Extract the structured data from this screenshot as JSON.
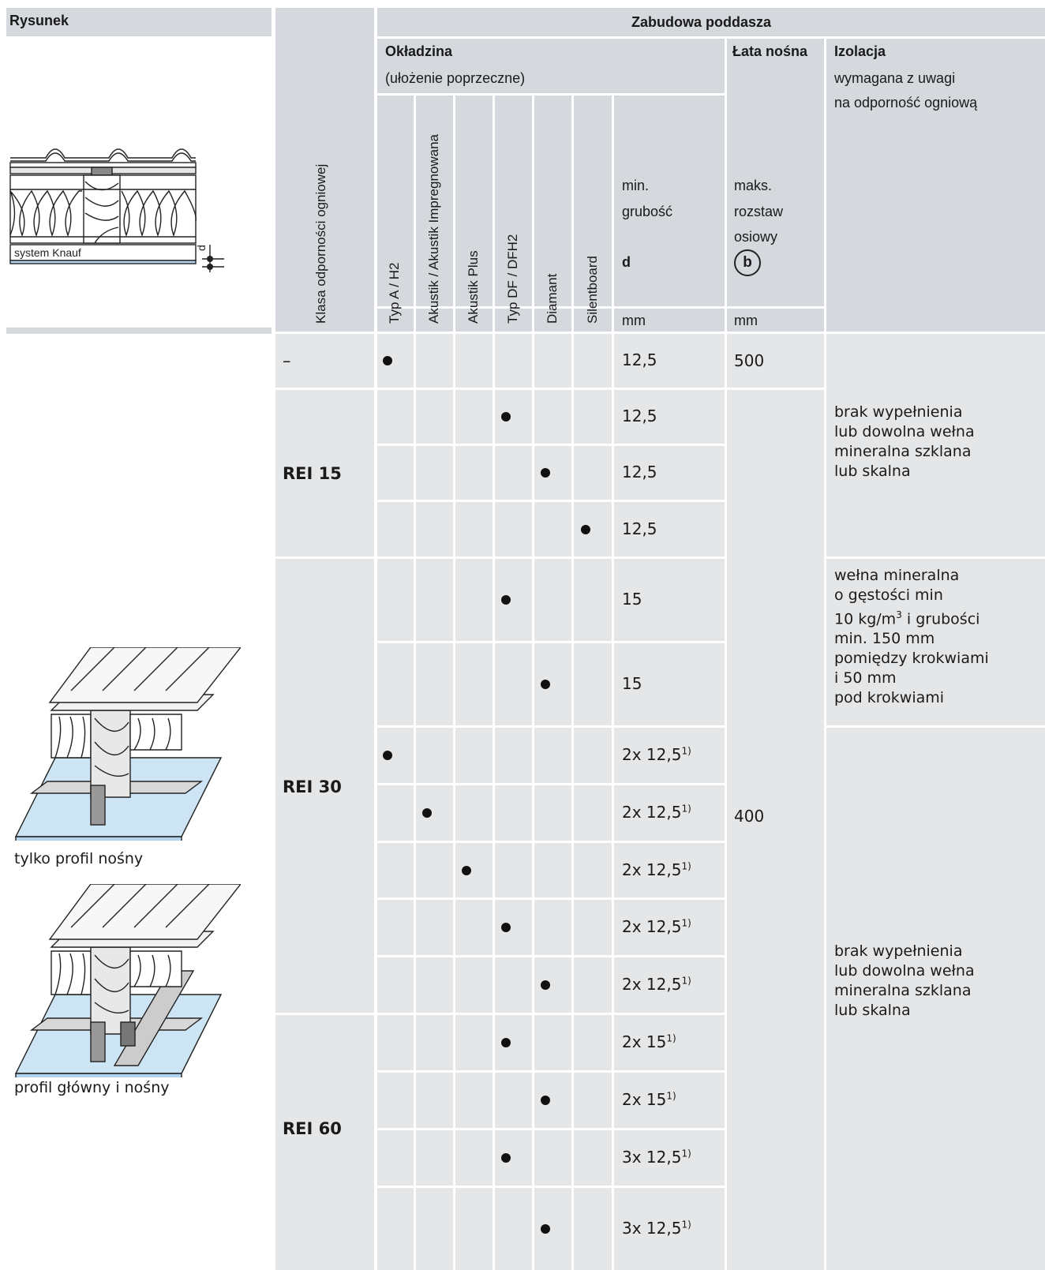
{
  "header": {
    "rysunek": "Rysunek",
    "zabudowa": "Zabudowa poddasza",
    "okladzina": "Okładzina",
    "okladzina_sub": "(ułożenie poprzeczne)",
    "lata": "Łata nośna",
    "izolacja": "Izolacja",
    "izolacja_sub1": "wymagana z uwagi",
    "izolacja_sub2": "na odporność ogniową",
    "klasa": "Klasa odporności ogniowej",
    "columns": [
      "Typ A / H2",
      "Akustik / Akustik Impregnowana",
      "Akustik Plus",
      "Typ DF / DFH2",
      "Diamant",
      "Silentboard"
    ],
    "min": "min.",
    "grubosc": "grubość",
    "d": "d",
    "maks": "maks.",
    "rozstaw": "rozstaw",
    "osiowy": "osiowy",
    "b": "b",
    "mm1": "mm",
    "mm2": "mm",
    "system_knauf": "system Knauf",
    "d_label": "d"
  },
  "rows": [
    {
      "col": 0,
      "thickness": "12,5",
      "sup": ""
    },
    {
      "col": 3,
      "thickness": "12,5",
      "sup": ""
    },
    {
      "col": 4,
      "thickness": "12,5",
      "sup": ""
    },
    {
      "col": 5,
      "thickness": "12,5",
      "sup": ""
    },
    {
      "col": 3,
      "thickness": "15",
      "sup": ""
    },
    {
      "col": 4,
      "thickness": "15",
      "sup": ""
    },
    {
      "col": 0,
      "thickness": "2x 12,5",
      "sup": "1)"
    },
    {
      "col": 1,
      "thickness": "2x 12,5",
      "sup": "1)"
    },
    {
      "col": 2,
      "thickness": "2x 12,5",
      "sup": "1)"
    },
    {
      "col": 3,
      "thickness": "2x 12,5",
      "sup": "1)"
    },
    {
      "col": 4,
      "thickness": "2x 12,5",
      "sup": "1)"
    },
    {
      "col": 3,
      "thickness": "2x 15",
      "sup": "1)"
    },
    {
      "col": 4,
      "thickness": "2x 15",
      "sup": "1)"
    },
    {
      "col": 3,
      "thickness": "3x 12,5",
      "sup": "1)"
    },
    {
      "col": 4,
      "thickness": "3x 12,5",
      "sup": "1)"
    }
  ],
  "classes": {
    "c0": "–",
    "c1": "REI 15",
    "c2": "REI 30",
    "c3": "REI 60"
  },
  "spacing": {
    "s0": "500",
    "s1": "400"
  },
  "insulation": {
    "i1": [
      "brak wypełnienia",
      "lub dowolna wełna",
      "mineralna szklana",
      "lub skalna"
    ],
    "i2a": "wełna mineralna",
    "i2b": "o gęstości min",
    "i2c_pre": "10 kg/m",
    "i2c_sup": "3",
    "i2c_post": " i grubości",
    "i2d": "min. 150 mm",
    "i2e": "pomiędzy krokwiami",
    "i2f": "i 50 mm",
    "i2g": "pod krokwiami",
    "i3": [
      "brak wypełnienia",
      "lub dowolna wełna",
      "mineralna szklana",
      "lub skalna"
    ]
  },
  "captions": {
    "cap1": "tylko profil nośny",
    "cap2": "profil główny i nośny"
  }
}
